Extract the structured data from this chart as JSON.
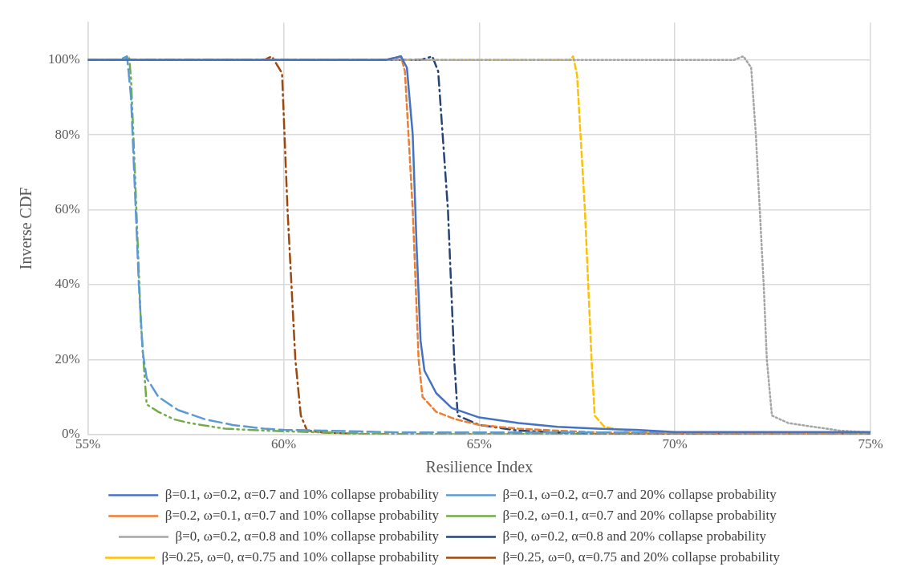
{
  "chart_data": {
    "type": "line",
    "xlabel": "Resilience Index",
    "ylabel": "Inverse CDF",
    "xlim": [
      55,
      75
    ],
    "xticks": [
      {
        "value": 55,
        "label": "55%"
      },
      {
        "value": 60,
        "label": "60%"
      },
      {
        "value": 65,
        "label": "65%"
      },
      {
        "value": 70,
        "label": "70%"
      },
      {
        "value": 75,
        "label": "75%"
      }
    ],
    "ylim": [
      0,
      110
    ],
    "yticks": [
      {
        "value": 0,
        "label": "0%"
      },
      {
        "value": 20,
        "label": "20%"
      },
      {
        "value": 40,
        "label": "40%"
      },
      {
        "value": 60,
        "label": "60%"
      },
      {
        "value": 80,
        "label": "80%"
      },
      {
        "value": 100,
        "label": "100%"
      }
    ],
    "grid": true,
    "legend": "bottom",
    "marker": "none",
    "series": [
      {
        "name": "β=0.1, ω=0.2, α=0.7 and 10% collapse probability",
        "color": "#4472c4",
        "line_style": "solid",
        "x": [
          55,
          62.6,
          63.0,
          63.15,
          63.3,
          63.4,
          63.5,
          63.6,
          63.9,
          64.3,
          65,
          66,
          67,
          68,
          69,
          70,
          75
        ],
        "values": [
          100,
          100,
          101,
          98,
          80,
          50,
          25,
          17,
          11,
          7,
          4.5,
          3,
          2,
          1.5,
          1.2,
          0.6,
          0.6
        ]
      },
      {
        "name": "β=0.1, ω=0.2, α=0.7 and 20% collapse probability",
        "color": "#5b9bd5",
        "line_style": "long-dash",
        "x": [
          55,
          55.8,
          56.0,
          56.1,
          56.2,
          56.3,
          56.4,
          56.5,
          56.8,
          57.3,
          58,
          58.7,
          59.5,
          60,
          61,
          63,
          75
        ],
        "values": [
          100,
          100,
          101,
          90,
          65,
          40,
          22,
          15,
          10,
          6.5,
          4,
          2.5,
          1.5,
          1.2,
          1,
          0.5,
          0.5
        ]
      },
      {
        "name": "β=0.2, ω=0.1, α=0.7 and 10% collapse probability",
        "color": "#ed7d31",
        "line_style": "dashed",
        "x": [
          55,
          62.6,
          63.0,
          63.1,
          63.3,
          63.45,
          63.55,
          63.9,
          64.4,
          65,
          66,
          67,
          68,
          75
        ],
        "values": [
          100,
          100,
          101,
          97,
          60,
          20,
          10,
          6,
          4,
          2.5,
          1.5,
          1,
          0.5,
          0
        ]
      },
      {
        "name": "β=0.2, ω=0.1, α=0.7 and 20% collapse probability",
        "color": "#70ad47",
        "line_style": "dash-dot-dot",
        "x": [
          55,
          55.9,
          56.05,
          56.1,
          56.2,
          56.35,
          56.45,
          56.5,
          56.8,
          57.2,
          57.6,
          58.5,
          59.5,
          61,
          63,
          75
        ],
        "values": [
          100,
          100,
          101,
          95,
          70,
          30,
          15,
          8,
          6,
          4,
          3,
          1.5,
          1,
          0.5,
          0,
          0
        ]
      },
      {
        "name": "β=0, ω=0.2, α=0.8 and 10% collapse probability",
        "color": "#a5a5a5",
        "line_style": "dotted",
        "x": [
          55,
          71.5,
          71.75,
          71.95,
          72.07,
          72.17,
          72.27,
          72.35,
          72.48,
          72.9,
          73.55,
          74.2,
          75
        ],
        "values": [
          100,
          100,
          101,
          98,
          80,
          60,
          40,
          20,
          5,
          3,
          2,
          1,
          0.5
        ]
      },
      {
        "name": "β=0, ω=0.2, α=0.8 and 20% collapse probability",
        "color": "#264478",
        "line_style": "dash-dot",
        "x": [
          55,
          63.5,
          63.8,
          63.95,
          64.2,
          64.36,
          64.45,
          65,
          66,
          67,
          68,
          75
        ],
        "values": [
          100,
          100,
          101,
          97,
          60,
          20,
          5,
          2.5,
          1,
          0.5,
          0,
          0
        ]
      },
      {
        "name": "β=0.25, ω=0, α=0.75 and 10% collapse probability",
        "color": "#ffc000",
        "line_style": "dashed",
        "x": [
          55,
          67.3,
          67.4,
          67.5,
          67.7,
          67.87,
          67.95,
          68.2,
          69,
          75
        ],
        "values": [
          100,
          100,
          101,
          96,
          60,
          20,
          5,
          2,
          0.5,
          0
        ]
      },
      {
        "name": "β=0.25, ω=0, α=0.75 and 20% collapse probability",
        "color": "#9e480e",
        "line_style": "dash-dot",
        "x": [
          55,
          59.5,
          59.7,
          59.96,
          60.1,
          60.3,
          60.44,
          60.6,
          61,
          62,
          75
        ],
        "values": [
          100,
          100,
          101,
          96.5,
          60,
          20,
          5,
          1,
          0.5,
          0,
          0
        ]
      }
    ]
  }
}
